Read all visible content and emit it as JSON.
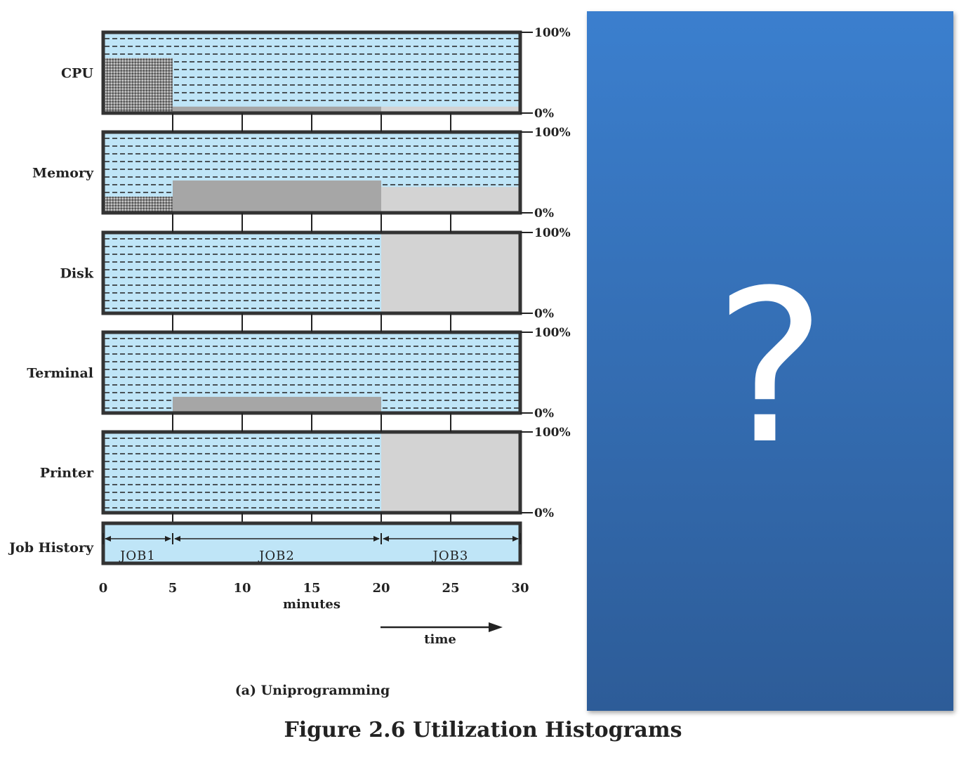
{
  "chart_data": {
    "type": "area",
    "subtitle": "(a) Uniprogramming",
    "title": "Figure 2.6  Utilization Histograms",
    "xlabel": "minutes",
    "x_direction_label": "time",
    "xlim": [
      0,
      30
    ],
    "x_ticks": [
      0,
      5,
      10,
      15,
      20,
      25,
      30
    ],
    "y_top_label": "100%",
    "y_bottom_label": "0%",
    "colors": {
      "background": "#bfe5f7",
      "job1": "#8c8c8c",
      "job2": "#a6a6a6",
      "job3": "#d3d3d3",
      "border": "#333333"
    },
    "resources": [
      {
        "name": "CPU",
        "segments": [
          {
            "job": "JOB1",
            "start": 0,
            "end": 5,
            "utilization": 0.68
          },
          {
            "job": "JOB2",
            "start": 5,
            "end": 20,
            "utilization": 0.08
          },
          {
            "job": "JOB3",
            "start": 20,
            "end": 30,
            "utilization": 0.08
          }
        ]
      },
      {
        "name": "Memory",
        "segments": [
          {
            "job": "JOB1",
            "start": 0,
            "end": 5,
            "utilization": 0.2
          },
          {
            "job": "JOB2",
            "start": 5,
            "end": 20,
            "utilization": 0.4
          },
          {
            "job": "JOB3",
            "start": 20,
            "end": 30,
            "utilization": 0.32
          }
        ]
      },
      {
        "name": "Disk",
        "segments": [
          {
            "job": "JOB3",
            "start": 20,
            "end": 30,
            "utilization": 1.0
          }
        ]
      },
      {
        "name": "Terminal",
        "segments": [
          {
            "job": "JOB2",
            "start": 5,
            "end": 20,
            "utilization": 0.2
          }
        ]
      },
      {
        "name": "Printer",
        "segments": [
          {
            "job": "JOB3",
            "start": 20,
            "end": 30,
            "utilization": 1.0
          }
        ]
      }
    ],
    "job_history": {
      "label": "Job History",
      "jobs": [
        {
          "name": "JOB1",
          "start": 0,
          "end": 5
        },
        {
          "name": "JOB2",
          "start": 5,
          "end": 20
        },
        {
          "name": "JOB3",
          "start": 20,
          "end": 30
        }
      ]
    }
  },
  "panel": {
    "mark": "?",
    "color": "#3b7fce"
  }
}
